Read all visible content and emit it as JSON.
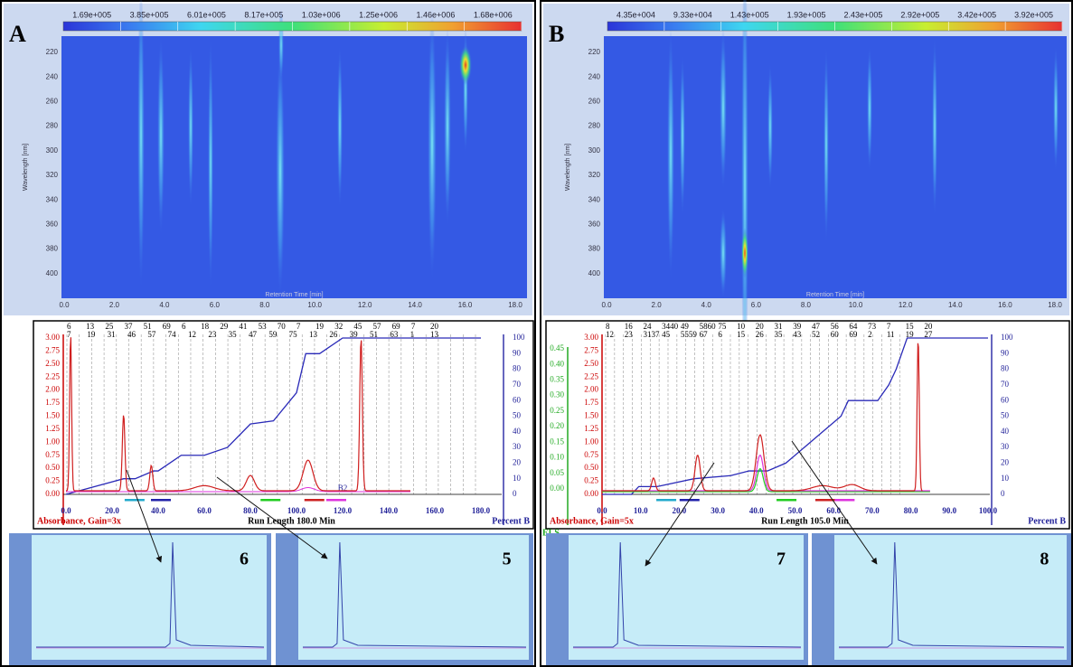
{
  "panels": [
    {
      "label": "A",
      "heatmap": {
        "colorbar": [
          "1.69e+005",
          "3.85e+005",
          "6.01e+005",
          "8.17e+005",
          "1.03e+006",
          "1.25e+006",
          "1.46e+006",
          "1.68e+006"
        ],
        "y_label": "Wavelength [nm]",
        "x_label": "Retention Time [min]",
        "yticks": [
          "220",
          "240",
          "260",
          "280",
          "300",
          "320",
          "340",
          "360",
          "380",
          "400"
        ],
        "xticks": [
          "0.0",
          "2.0",
          "4.0",
          "6.0",
          "8.0",
          "10.0",
          "12.0",
          "14.0",
          "16.0",
          "18.0"
        ]
      },
      "chromatogram": {
        "left_ticks": [
          "3.00",
          "2.75",
          "2.50",
          "2.25",
          "2.00",
          "1.75",
          "1.50",
          "1.25",
          "1.00",
          "0.75",
          "0.50",
          "0.25",
          "0.00"
        ],
        "right_ticks": [
          "100",
          "90",
          "80",
          "70",
          "60",
          "50",
          "40",
          "30",
          "20",
          "10",
          "0"
        ],
        "xticks": [
          "0.0",
          "20.0",
          "40.0",
          "60.0",
          "80.0",
          "100.0",
          "120.0",
          "140.0",
          "160.0",
          "180.0"
        ],
        "left_label": "Absorbance, Gain=3x",
        "center_label": "Run Length 180.0 Min",
        "right_label": "Percent B",
        "fraction_row1": [
          "6",
          "13",
          "25",
          "37",
          "51",
          "69",
          "6",
          "18",
          "29",
          "41",
          "53",
          "70",
          "7",
          "19",
          "32",
          "45",
          "57",
          "69",
          "7",
          "20"
        ],
        "fraction_row2": [
          "7",
          "19",
          "31",
          "46",
          "57",
          "74",
          "12",
          "23",
          "35",
          "47",
          "59",
          "75",
          "13",
          "26",
          "39",
          "51",
          "63",
          "1",
          "13"
        ],
        "annotation": "B2"
      },
      "insets": [
        "6",
        "5"
      ]
    },
    {
      "label": "B",
      "heatmap": {
        "colorbar": [
          "4.35e+004",
          "9.33e+004",
          "1.43e+005",
          "1.93e+005",
          "2.43e+005",
          "2.92e+005",
          "3.42e+005",
          "3.92e+005"
        ],
        "y_label": "Wavelength [nm]",
        "x_label": "Retention Time [min]",
        "yticks": [
          "220",
          "240",
          "260",
          "280",
          "300",
          "320",
          "340",
          "360",
          "380",
          "400"
        ],
        "xticks": [
          "0.0",
          "2.0",
          "4.0",
          "6.0",
          "8.0",
          "10.0",
          "12.0",
          "14.0",
          "16.0",
          "18.0"
        ]
      },
      "chromatogram": {
        "left_ticks": [
          "3.00",
          "2.75",
          "2.50",
          "2.25",
          "2.00",
          "1.75",
          "1.50",
          "1.25",
          "1.00",
          "0.75",
          "0.50",
          "0.25",
          "0.00"
        ],
        "els_ticks": [
          "0.45",
          "0.40",
          "0.35",
          "0.30",
          "0.25",
          "0.20",
          "0.15",
          "0.10",
          "0.05",
          "0.00"
        ],
        "right_ticks": [
          "100",
          "90",
          "80",
          "70",
          "60",
          "50",
          "40",
          "30",
          "20",
          "10",
          "0"
        ],
        "xticks": [
          "0.0",
          "10.0",
          "20.0",
          "30.0",
          "40.0",
          "50.0",
          "60.0",
          "70.0",
          "80.0",
          "90.0",
          "100.0"
        ],
        "left_label": "Absorbance, Gain=5x",
        "center_label": "Run Length 105.0 Min",
        "right_label": "Percent B",
        "els_label": "ELS",
        "fraction_row1": [
          "8",
          "16",
          "24",
          "3440",
          "49",
          "5860",
          "75",
          "10",
          "20",
          "31",
          "39",
          "47",
          "56",
          "64",
          "73",
          "7",
          "15",
          "20"
        ],
        "fraction_row2": [
          "12",
          "23",
          "3137",
          "45",
          "5559",
          "67",
          "6",
          "15",
          "26",
          "35",
          "43",
          "52",
          "60",
          "69",
          "2",
          "11",
          "19",
          "27"
        ]
      },
      "insets": [
        "7",
        "8"
      ]
    }
  ]
}
